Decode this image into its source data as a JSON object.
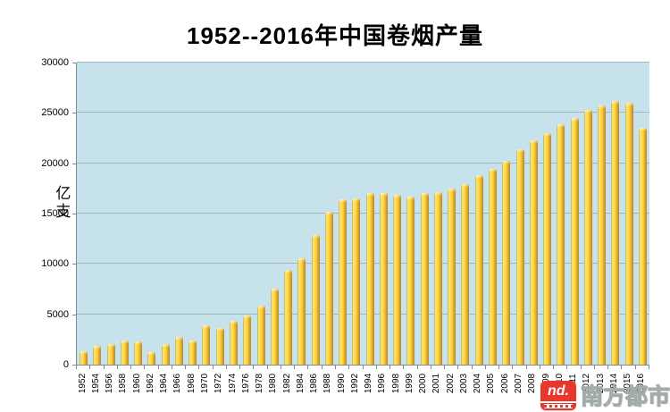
{
  "title": "1952--2016年中国卷烟产量",
  "chart_data": {
    "type": "bar",
    "title": "1952--2016年中国卷烟产量",
    "xlabel": "",
    "ylabel": "亿支",
    "ylim": [
      0,
      30000
    ],
    "yticks": [
      0,
      5000,
      10000,
      15000,
      20000,
      25000,
      30000
    ],
    "grid": true,
    "legend": false,
    "plot_background": "#C6E2EA",
    "bar_color": "#FFD23B",
    "categories": [
      "1952",
      "1954",
      "1956",
      "1958",
      "1960",
      "1962",
      "1964",
      "1966",
      "1968",
      "1970",
      "1972",
      "1974",
      "1976",
      "1978",
      "1980",
      "1982",
      "1984",
      "1986",
      "1988",
      "1990",
      "1992",
      "1994",
      "1996",
      "1998",
      "1999",
      "2000",
      "2001",
      "2002",
      "2003",
      "2004",
      "2005",
      "2006",
      "2007",
      "2008",
      "2009",
      "2010",
      "2011",
      "2012",
      "2013",
      "2014",
      "2015",
      "2016"
    ],
    "values": [
      1300,
      1870,
      2010,
      2430,
      2310,
      1210,
      2070,
      2720,
      2430,
      3900,
      3650,
      4350,
      4880,
      5860,
      7550,
      9420,
      10600,
      12830,
      15200,
      16380,
      16500,
      17030,
      17080,
      16900,
      16700,
      17050,
      17100,
      17450,
      17960,
      18800,
      19450,
      20270,
      21400,
      22250,
      22960,
      23840,
      24520,
      25280,
      25700,
      26200,
      26000,
      23540
    ]
  },
  "watermark": {
    "logo_text": "nd.",
    "wordmark": "南方都市报",
    "logo_color": "#E8382D"
  }
}
